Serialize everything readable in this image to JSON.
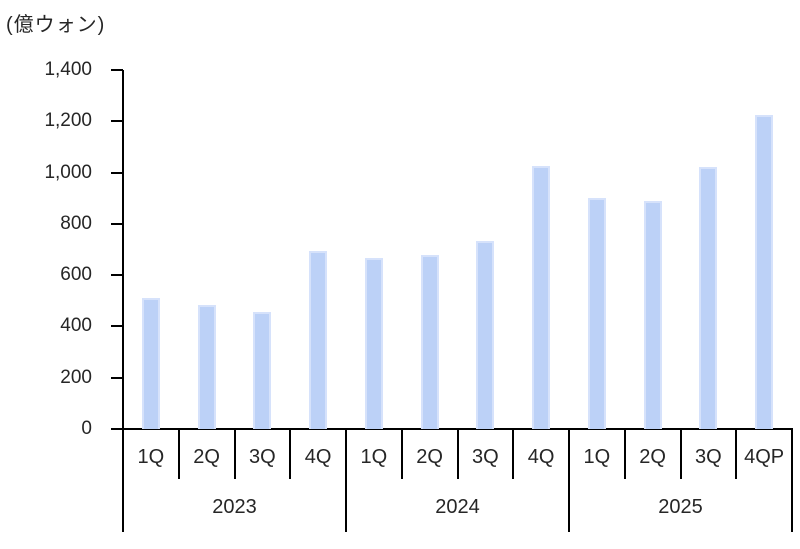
{
  "chart_data": {
    "type": "bar",
    "title": "(億ウォン)",
    "categories": [
      "1Q",
      "2Q",
      "3Q",
      "4Q",
      "1Q",
      "2Q",
      "3Q",
      "4Q",
      "1Q",
      "2Q",
      "3Q",
      "4QP"
    ],
    "group_labels": [
      "2023",
      "2024",
      "2025"
    ],
    "values": [
      510,
      485,
      455,
      695,
      665,
      680,
      735,
      1025,
      900,
      890,
      1020,
      1225
    ],
    "years": [
      {
        "label": "2023",
        "quarters": [
          "1Q",
          "2Q",
          "3Q",
          "4Q"
        ],
        "values": [
          510,
          485,
          455,
          695
        ]
      },
      {
        "label": "2024",
        "quarters": [
          "1Q",
          "2Q",
          "3Q",
          "4Q"
        ],
        "values": [
          665,
          680,
          735,
          1025
        ]
      },
      {
        "label": "2025",
        "quarters": [
          "1Q",
          "2Q",
          "3Q",
          "4QP"
        ],
        "values": [
          900,
          890,
          1020,
          1225
        ]
      }
    ],
    "yticks": [
      "1,400",
      "1,200",
      "1,000",
      "800",
      "600",
      "400",
      "200",
      "0"
    ],
    "ylim": [
      0,
      1400
    ],
    "xlabel": "",
    "ylabel": "(億ウォン)",
    "grid": "off",
    "legend": "none",
    "bar_color": "#bcd1f7",
    "bar_edge_color": "#d6e2fb",
    "axis_color": "#000000",
    "text_color": "#262626"
  }
}
